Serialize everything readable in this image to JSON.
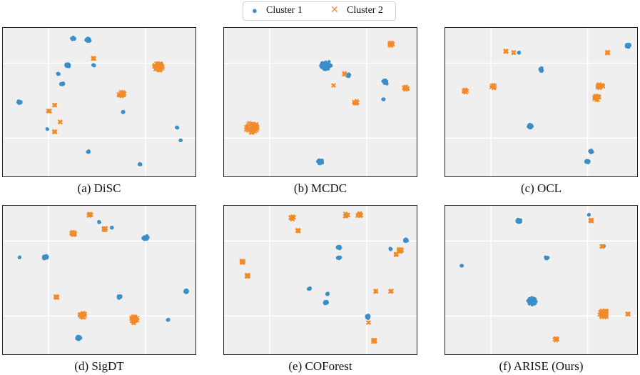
{
  "legend": {
    "items": [
      {
        "label": "Cluster 1",
        "color": "#3a8fc8",
        "marker": "dot"
      },
      {
        "label": "Cluster 2",
        "color": "#f28a28",
        "marker": "x"
      }
    ]
  },
  "chart_data": [
    {
      "type": "scatter",
      "caption": "(a) DiSC",
      "xlim": [
        0,
        1
      ],
      "ylim": [
        0,
        1
      ],
      "grid": true,
      "legend": "top-center",
      "series": [
        {
          "name": "Cluster 1",
          "points": [
            [
              0.36,
              0.95,
              0.015
            ],
            [
              0.44,
              0.94,
              0.02
            ],
            [
              0.33,
              0.76,
              0.02
            ],
            [
              0.3,
              0.63,
              0.015
            ],
            [
              0.28,
              0.7,
              0.008
            ],
            [
              0.07,
              0.5,
              0.015
            ],
            [
              0.63,
              0.43,
              0.008
            ],
            [
              0.44,
              0.15,
              0.01
            ],
            [
              0.72,
              0.06,
              0.008
            ],
            [
              0.92,
              0.32,
              0.006
            ],
            [
              0.94,
              0.23,
              0.006
            ],
            [
              0.22,
              0.31,
              0.006
            ],
            [
              0.47,
              0.76,
              0.008
            ]
          ]
        },
        {
          "name": "Cluster 2",
          "points": [
            [
              0.82,
              0.75,
              0.045
            ],
            [
              0.62,
              0.56,
              0.03
            ],
            [
              0.47,
              0.81,
              0.01
            ],
            [
              0.23,
              0.44,
              0.012
            ],
            [
              0.26,
              0.48,
              0.008
            ],
            [
              0.29,
              0.36,
              0.008
            ],
            [
              0.26,
              0.29,
              0.01
            ]
          ]
        }
      ]
    },
    {
      "type": "scatter",
      "caption": "(b) MCDC",
      "xlim": [
        0,
        1
      ],
      "ylim": [
        0,
        1
      ],
      "grid": true,
      "series": [
        {
          "name": "Cluster 1",
          "points": [
            [
              0.53,
              0.76,
              0.05
            ],
            [
              0.65,
              0.69,
              0.015
            ],
            [
              0.5,
              0.08,
              0.025
            ],
            [
              0.85,
              0.64,
              0.025
            ],
            [
              0.84,
              0.52,
              0.006
            ]
          ]
        },
        {
          "name": "Cluster 2",
          "points": [
            [
              0.13,
              0.32,
              0.06
            ],
            [
              0.88,
              0.91,
              0.02
            ],
            [
              0.69,
              0.5,
              0.02
            ],
            [
              0.96,
              0.6,
              0.02
            ],
            [
              0.57,
              0.62,
              0.006
            ],
            [
              0.63,
              0.7,
              0.01
            ]
          ]
        }
      ]
    },
    {
      "type": "scatter",
      "caption": "(c) OCL",
      "xlim": [
        0,
        1
      ],
      "ylim": [
        0,
        1
      ],
      "grid": true,
      "series": [
        {
          "name": "Cluster 1",
          "points": [
            [
              0.97,
              0.9,
              0.02
            ],
            [
              0.5,
              0.73,
              0.02
            ],
            [
              0.44,
              0.33,
              0.02
            ],
            [
              0.77,
              0.15,
              0.015
            ],
            [
              0.75,
              0.08,
              0.015
            ],
            [
              0.38,
              0.85,
              0.006
            ]
          ]
        },
        {
          "name": "Cluster 2",
          "points": [
            [
              0.09,
              0.58,
              0.02
            ],
            [
              0.24,
              0.61,
              0.02
            ],
            [
              0.82,
              0.61,
              0.03
            ],
            [
              0.8,
              0.53,
              0.03
            ],
            [
              0.86,
              0.85,
              0.01
            ],
            [
              0.31,
              0.86,
              0.01
            ],
            [
              0.35,
              0.85,
              0.008
            ]
          ]
        }
      ]
    },
    {
      "type": "scatter",
      "caption": "(d) SigDT",
      "xlim": [
        0,
        1
      ],
      "ylim": [
        0,
        1
      ],
      "grid": true,
      "series": [
        {
          "name": "Cluster 1",
          "points": [
            [
              0.07,
              0.66,
              0.006
            ],
            [
              0.21,
              0.66,
              0.02
            ],
            [
              0.75,
              0.8,
              0.025
            ],
            [
              0.61,
              0.38,
              0.015
            ],
            [
              0.97,
              0.42,
              0.015
            ],
            [
              0.87,
              0.22,
              0.008
            ],
            [
              0.39,
              0.09,
              0.02
            ],
            [
              0.5,
              0.91,
              0.006
            ],
            [
              0.57,
              0.87,
              0.008
            ],
            [
              0.27,
              0.38,
              0.006
            ]
          ]
        },
        {
          "name": "Cluster 2",
          "points": [
            [
              0.36,
              0.83,
              0.02
            ],
            [
              0.45,
              0.96,
              0.015
            ],
            [
              0.53,
              0.86,
              0.015
            ],
            [
              0.41,
              0.25,
              0.03
            ],
            [
              0.69,
              0.22,
              0.04
            ],
            [
              0.27,
              0.38,
              0.012
            ]
          ]
        }
      ]
    },
    {
      "type": "scatter",
      "caption": "(e) COForest",
      "xlim": [
        0,
        1
      ],
      "ylim": [
        0,
        1
      ],
      "grid": true,
      "series": [
        {
          "name": "Cluster 1",
          "points": [
            [
              0.6,
              0.73,
              0.015
            ],
            [
              0.6,
              0.66,
              0.015
            ],
            [
              0.96,
              0.78,
              0.015
            ],
            [
              0.88,
              0.72,
              0.008
            ],
            [
              0.44,
              0.44,
              0.01
            ],
            [
              0.54,
              0.4,
              0.01
            ],
            [
              0.53,
              0.34,
              0.015
            ],
            [
              0.76,
              0.24,
              0.02
            ]
          ]
        },
        {
          "name": "Cluster 2",
          "points": [
            [
              0.35,
              0.94,
              0.02
            ],
            [
              0.38,
              0.85,
              0.012
            ],
            [
              0.64,
              0.96,
              0.02
            ],
            [
              0.71,
              0.96,
              0.02
            ],
            [
              0.93,
              0.71,
              0.02
            ],
            [
              0.91,
              0.68,
              0.01
            ],
            [
              0.08,
              0.63,
              0.015
            ],
            [
              0.11,
              0.53,
              0.015
            ],
            [
              0.8,
              0.42,
              0.01
            ],
            [
              0.88,
              0.42,
              0.01
            ],
            [
              0.76,
              0.2,
              0.006
            ],
            [
              0.79,
              0.07,
              0.015
            ]
          ]
        }
      ]
    },
    {
      "type": "scatter",
      "caption": "(f) ARISE (Ours)",
      "xlim": [
        0,
        1
      ],
      "ylim": [
        0,
        1
      ],
      "grid": true,
      "series": [
        {
          "name": "Cluster 1",
          "points": [
            [
              0.38,
              0.92,
              0.02
            ],
            [
              0.53,
              0.66,
              0.015
            ],
            [
              0.07,
              0.6,
              0.006
            ],
            [
              0.45,
              0.35,
              0.04
            ],
            [
              0.76,
              0.96,
              0.006
            ],
            [
              0.84,
              0.74,
              0.006
            ]
          ]
        },
        {
          "name": "Cluster 2",
          "points": [
            [
              0.77,
              0.92,
              0.012
            ],
            [
              0.83,
              0.74,
              0.012
            ],
            [
              0.84,
              0.26,
              0.045
            ],
            [
              0.97,
              0.26,
              0.01
            ],
            [
              0.58,
              0.08,
              0.015
            ]
          ]
        }
      ]
    }
  ]
}
